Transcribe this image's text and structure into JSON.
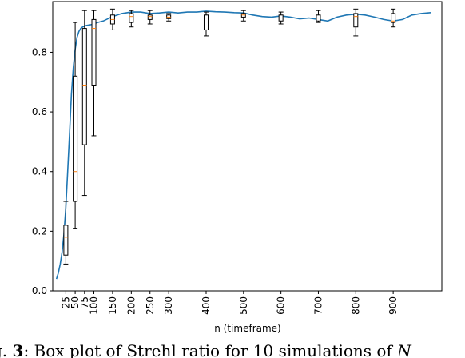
{
  "chart_data": {
    "type": "box+line",
    "xlabel": "n (timeframe)",
    "ylim": [
      0.0,
      0.97
    ],
    "xlim": [
      -10,
      1030
    ],
    "y_ticks": [
      "0.0",
      "0.2",
      "0.4",
      "0.6",
      "0.8"
    ],
    "y_tick_values": [
      0.0,
      0.2,
      0.4,
      0.6,
      0.8
    ],
    "x_ticks": [
      "25",
      "50",
      "75",
      "100",
      "150",
      "200",
      "250",
      "300",
      "400",
      "500",
      "600",
      "700",
      "800",
      "900"
    ],
    "boxes": [
      {
        "x": 25,
        "whislo": 0.09,
        "q1": 0.12,
        "med": 0.18,
        "q3": 0.22,
        "whishi": 0.3
      },
      {
        "x": 50,
        "whislo": 0.21,
        "q1": 0.3,
        "med": 0.4,
        "q3": 0.72,
        "whishi": 0.9
      },
      {
        "x": 75,
        "whislo": 0.32,
        "q1": 0.49,
        "med": 0.69,
        "q3": 0.88,
        "whishi": 0.94
      },
      {
        "x": 100,
        "whislo": 0.52,
        "q1": 0.69,
        "med": 0.88,
        "q3": 0.91,
        "whishi": 0.94
      },
      {
        "x": 150,
        "whislo": 0.875,
        "q1": 0.895,
        "med": 0.91,
        "q3": 0.925,
        "whishi": 0.945
      },
      {
        "x": 200,
        "whislo": 0.885,
        "q1": 0.9,
        "med": 0.92,
        "q3": 0.93,
        "whishi": 0.94
      },
      {
        "x": 250,
        "whislo": 0.895,
        "q1": 0.91,
        "med": 0.92,
        "q3": 0.925,
        "whishi": 0.94
      },
      {
        "x": 300,
        "whislo": 0.905,
        "q1": 0.913,
        "med": 0.918,
        "q3": 0.925,
        "whishi": 0.93
      },
      {
        "x": 400,
        "whislo": 0.855,
        "q1": 0.875,
        "med": 0.915,
        "q3": 0.925,
        "whishi": 0.935
      },
      {
        "x": 500,
        "whislo": 0.905,
        "q1": 0.918,
        "med": 0.925,
        "q3": 0.93,
        "whishi": 0.94
      },
      {
        "x": 600,
        "whislo": 0.895,
        "q1": 0.905,
        "med": 0.915,
        "q3": 0.925,
        "whishi": 0.935
      },
      {
        "x": 700,
        "whislo": 0.9,
        "q1": 0.905,
        "med": 0.915,
        "q3": 0.925,
        "whishi": 0.94
      },
      {
        "x": 800,
        "whislo": 0.855,
        "q1": 0.885,
        "med": 0.92,
        "q3": 0.93,
        "whishi": 0.945
      },
      {
        "x": 900,
        "whislo": 0.885,
        "q1": 0.9,
        "med": 0.905,
        "q3": 0.93,
        "whishi": 0.945
      }
    ],
    "line": {
      "x": [
        0,
        5,
        10,
        15,
        20,
        25,
        30,
        35,
        40,
        45,
        50,
        55,
        60,
        65,
        70,
        80,
        90,
        100,
        110,
        125,
        150,
        175,
        200,
        225,
        250,
        275,
        300,
        325,
        350,
        375,
        400,
        425,
        450,
        475,
        500,
        525,
        550,
        575,
        600,
        625,
        650,
        675,
        700,
        725,
        750,
        775,
        800,
        825,
        850,
        875,
        900,
        925,
        950,
        975,
        1000
      ],
      "y": [
        0.04,
        0.06,
        0.09,
        0.13,
        0.19,
        0.28,
        0.4,
        0.53,
        0.66,
        0.75,
        0.81,
        0.85,
        0.87,
        0.88,
        0.885,
        0.89,
        0.892,
        0.895,
        0.9,
        0.905,
        0.92,
        0.93,
        0.935,
        0.935,
        0.93,
        0.932,
        0.935,
        0.932,
        0.935,
        0.935,
        0.938,
        0.936,
        0.935,
        0.933,
        0.932,
        0.925,
        0.92,
        0.918,
        0.922,
        0.918,
        0.912,
        0.915,
        0.91,
        0.905,
        0.918,
        0.925,
        0.928,
        0.925,
        0.918,
        0.91,
        0.905,
        0.91,
        0.925,
        0.93,
        0.933
      ]
    },
    "line_color": "#1f77b4",
    "median_color": "#ff7f0e",
    "box_color": "#000000"
  },
  "caption": {
    "lead": "g. ",
    "fig_num": "3",
    "text": ": Box plot of Strehl ratio for 10 simulations of ",
    "var": "N"
  }
}
